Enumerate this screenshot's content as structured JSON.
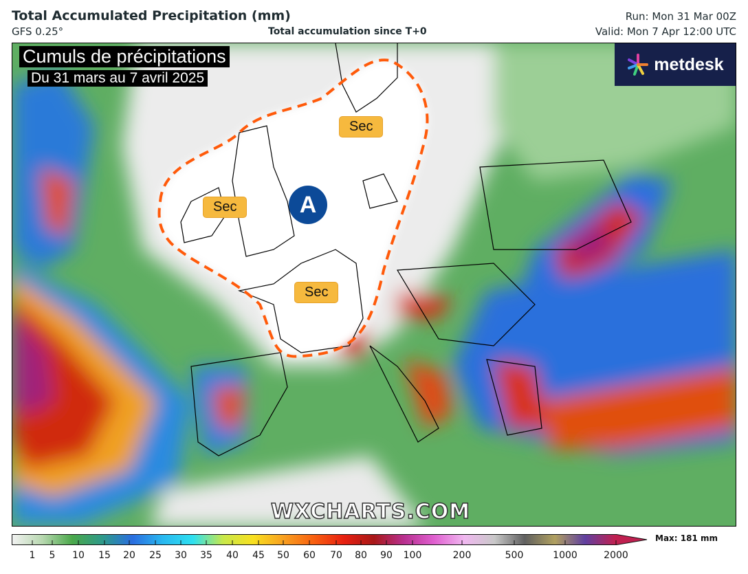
{
  "header": {
    "title": "Total Accumulated Precipitation (mm)",
    "model": "GFS 0.25°",
    "subtitle": "Total accumulation since T+0",
    "run": "Run: Mon 31 Mar 00Z",
    "valid": "Valid: Mon 7 Apr 12:00 UTC"
  },
  "overlay": {
    "caption_line1": "Cumuls de précipitations",
    "caption_line2": "Du 31 mars au 7 avril 2025",
    "logo_text": "metdesk",
    "dry_labels": [
      "Sec",
      "Sec",
      "Sec"
    ],
    "anticyclone_label": "A",
    "dry_zone_outline_color": "#ff5a0a",
    "watermark": "WXCHARTS.COM"
  },
  "legend": {
    "max_label": "Max: 181 mm",
    "ticks": [
      "1",
      "5",
      "10",
      "15",
      "20",
      "25",
      "30",
      "35",
      "40",
      "45",
      "50",
      "60",
      "70",
      "80",
      "90",
      "100",
      "200",
      "500",
      "1000",
      "2000"
    ],
    "colors": [
      "#f2f2f2",
      "#b8d8b0",
      "#4aa84a",
      "#2e9a8a",
      "#2a6ee0",
      "#29b8f0",
      "#2ee0f0",
      "#c8e84a",
      "#f8e020",
      "#f8a020",
      "#f86010",
      "#e82010",
      "#a81818",
      "#b83090",
      "#e060d0",
      "#f0b8f0",
      "#c8c8c8",
      "#606060",
      "#b0a060",
      "#6040a0",
      "#c02050"
    ]
  }
}
